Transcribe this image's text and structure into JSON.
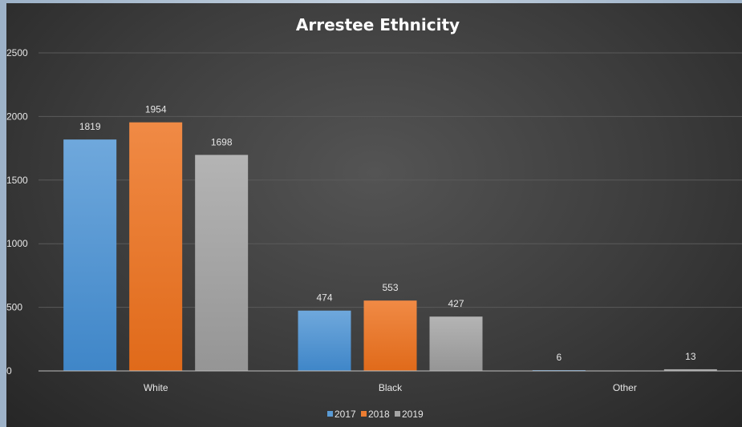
{
  "chart_data": {
    "type": "bar",
    "title": "Arrestee Ethnicity",
    "categories": [
      "White",
      "Black",
      "Other"
    ],
    "series": [
      {
        "name": "2017",
        "values": [
          1819,
          474,
          6
        ],
        "labels": [
          "1819",
          "474",
          "6"
        ],
        "color": "#5a9bd5"
      },
      {
        "name": "2018",
        "values": [
          1954,
          553,
          0
        ],
        "labels": [
          "1954",
          "553",
          ""
        ],
        "color": "#ed7d31"
      },
      {
        "name": "2019",
        "values": [
          1698,
          427,
          13
        ],
        "labels": [
          "1698",
          "427",
          "13"
        ],
        "color": "#a5a5a5"
      }
    ],
    "y_ticks": [
      "0",
      "500",
      "1000",
      "1500",
      "2000",
      "2500"
    ],
    "ylim": [
      0,
      2500
    ],
    "grid": true,
    "legend_position": "bottom",
    "background": "#3c3c3c"
  }
}
